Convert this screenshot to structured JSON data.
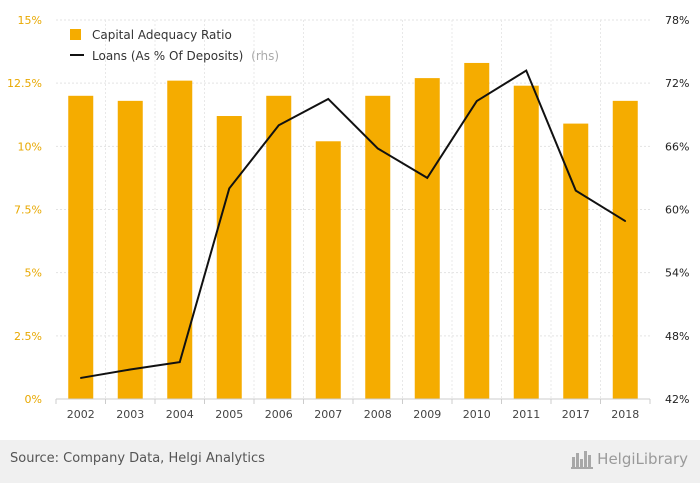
{
  "chart_data": {
    "type": "bar",
    "categories": [
      "2002",
      "2003",
      "2004",
      "2005",
      "2006",
      "2007",
      "2008",
      "2009",
      "2010",
      "2011",
      "2017",
      "2018"
    ],
    "series": [
      {
        "name": "Capital Adequacy Ratio",
        "type": "bar",
        "axis": "left",
        "color": "#f5ac00",
        "values": [
          12.0,
          11.8,
          12.6,
          11.2,
          12.0,
          10.2,
          12.0,
          12.7,
          13.3,
          12.4,
          10.9,
          11.8
        ]
      },
      {
        "name": "Loans (As % Of Deposits)",
        "axis_note": "(rhs)",
        "type": "line",
        "axis": "right",
        "color": "#111111",
        "values": [
          44.0,
          44.8,
          45.5,
          62.0,
          68.0,
          70.5,
          65.8,
          63.0,
          70.3,
          73.2,
          61.8,
          58.9
        ]
      }
    ],
    "left_axis": {
      "ylim": [
        0,
        15
      ],
      "ticks": [
        0,
        2.5,
        5,
        7.5,
        10,
        12.5,
        15
      ],
      "tick_labels": [
        "0%",
        "2.5%",
        "5%",
        "7.5%",
        "10%",
        "12.5%",
        "15%"
      ],
      "color": "#e8a800"
    },
    "right_axis": {
      "ylim": [
        42,
        78
      ],
      "ticks": [
        42,
        48,
        54,
        60,
        66,
        72,
        78
      ],
      "tick_labels": [
        "42%",
        "48%",
        "54%",
        "60%",
        "66%",
        "72%",
        "78%"
      ]
    },
    "title": "",
    "xlabel": "",
    "ylabel": "",
    "grid": true,
    "legend_position": "top-left"
  },
  "footer": {
    "source": "Source: Company Data, Helgi Analytics",
    "brand": "HelgiLibrary"
  }
}
